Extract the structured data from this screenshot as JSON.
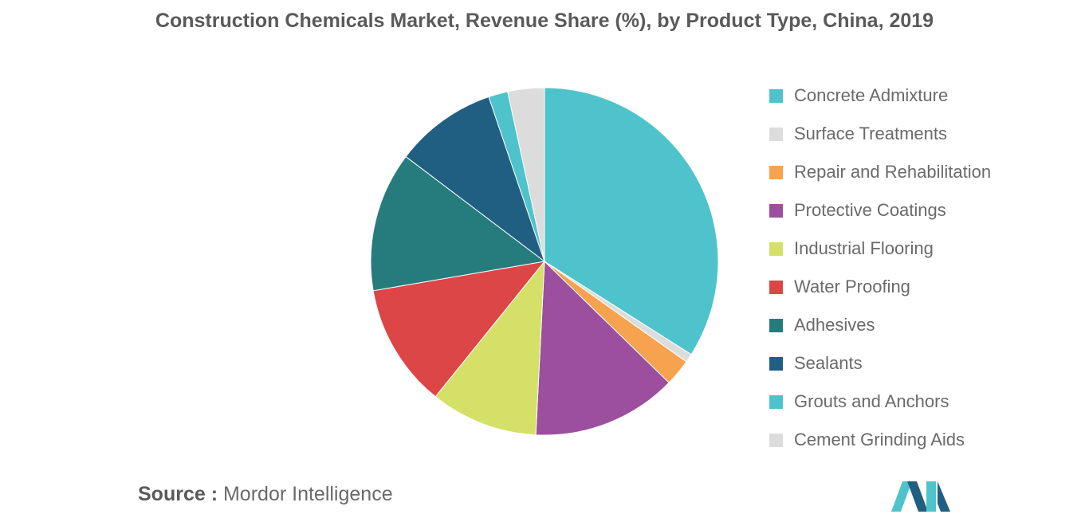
{
  "chart_data": {
    "type": "pie",
    "title": "Construction Chemicals Market, Revenue Share (%), by Product Type, China, 2019",
    "slices": [
      {
        "label": "Concrete Admixture",
        "value": 34.0,
        "color": "#4fc3cb"
      },
      {
        "label": "Surface Treatments",
        "value": 0.8,
        "color": "#dcdcdc"
      },
      {
        "label": "Repair and Rehabilitation",
        "value": 2.5,
        "color": "#f7a24f"
      },
      {
        "label": "Protective Coatings",
        "value": 13.5,
        "color": "#9b4f9e"
      },
      {
        "label": "Industrial Flooring",
        "value": 10.0,
        "color": "#d4e067"
      },
      {
        "label": "Water Proofing",
        "value": 11.5,
        "color": "#dc4646"
      },
      {
        "label": "Adhesives",
        "value": 13.0,
        "color": "#267c7c"
      },
      {
        "label": "Sealants",
        "value": 9.5,
        "color": "#215f82"
      },
      {
        "label": "Grouts and Anchors",
        "value": 1.8,
        "color": "#4fc3cb"
      },
      {
        "label": "Cement Grinding Aids",
        "value": 3.4,
        "color": "#dcdcdc"
      }
    ],
    "legend_position": "right"
  },
  "source": {
    "prefix": "Source :",
    "text": "Mordor Intelligence"
  },
  "logo": {
    "colors": [
      "#4fc3cb",
      "#215f82"
    ]
  }
}
